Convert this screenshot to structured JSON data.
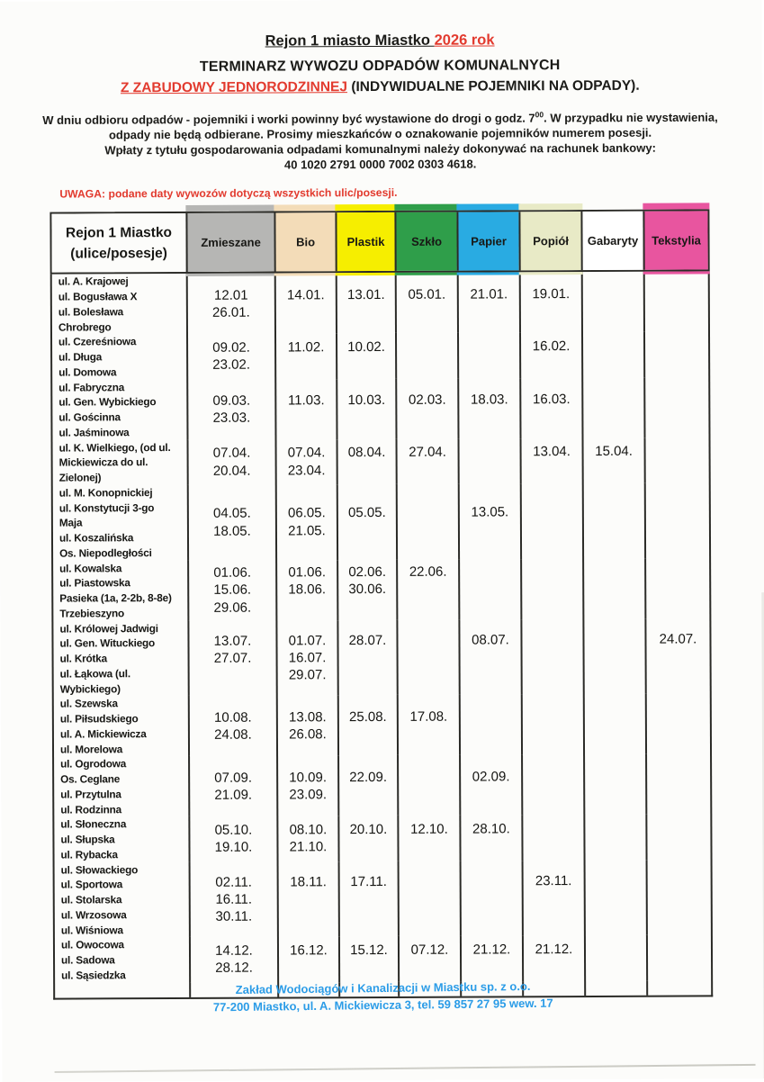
{
  "colors": {
    "red": "#e23a2e",
    "blue": "#2b9ce7",
    "table_border": "#2b2b27",
    "col_zmieszane": "#b6b6b4",
    "col_bio": "#f3dcb8",
    "col_plastik": "#f6ee00",
    "col_szklo": "#2f9e4a",
    "col_papier": "#29abe2",
    "col_popiol": "#e8eac6",
    "col_gabaryty": "#ffffff",
    "col_tekstylia": "#e8559f"
  },
  "page": {
    "title": {
      "black": "Rejon 1 miasto Miastko ",
      "red": "2026 rok"
    },
    "subtitle1": "TERMINARZ WYWOZU ODPADÓW KOMUNALNYCH",
    "subtitle2": {
      "red": "Z ZABUDOWY JEDNORODZINNEJ",
      "rest": " (INDYWIDUALNE POJEMNIKI NA ODPADY)."
    },
    "notice": {
      "l1a": "W dniu odbioru odpadów  - pojemniki i worki powinny być wystawione do drogi o godz. 7",
      "sup": "00",
      "l1b": ". W przypadku nie wystawienia,",
      "l2": "odpady nie będą odbierane. Prosimy mieszkańców o oznakowanie pojemników numerem posesji.",
      "l3": "Wpłaty z tytułu gospodarowania odpadami komunalnymi należy dokonywać na rachunek bankowy:",
      "l4": "40 1020 2791 0000 7002 0303 4618."
    },
    "uwaga": "UWAGA: podane daty wywozów dotyczą wszystkich ulic/posesji.",
    "footer": {
      "line1": "Zakład Wodociągów i Kanalizacji w Miastku sp. z o.o.",
      "line2": "77-200 Miastko, ul. A. Mickiewicza 3, tel. 59 857 27 95 wew. 17"
    }
  },
  "table": {
    "header": {
      "region_line1": "Rejon 1 Miastko",
      "region_line2": "(ulice/posesje)"
    },
    "columns": [
      {
        "key": "zmieszane",
        "label": "Zmieszane",
        "bg": "#b6b6b4",
        "bleed": true
      },
      {
        "key": "bio",
        "label": "Bio",
        "bg": "#f3dcb8",
        "bleed": true
      },
      {
        "key": "plastik",
        "label": "Plastik",
        "bg": "#f6ee00",
        "bleed": true
      },
      {
        "key": "szklo",
        "label": "Szkło",
        "bg": "#2f9e4a",
        "bleed": true
      },
      {
        "key": "papier",
        "label": "Papier",
        "bg": "#29abe2",
        "bleed": true
      },
      {
        "key": "popiol",
        "label": "Popiół",
        "bg": "#e8eac6",
        "bleed": true
      },
      {
        "key": "gabaryty",
        "label": "Gabaryty",
        "bg": "#ffffff",
        "bleed": false
      },
      {
        "key": "tekstylia",
        "label": "Tekstylia",
        "bg": "#e8559f",
        "bleed": true
      }
    ],
    "groups": [
      {
        "streets": [
          "ul. A. Krajowej",
          "ul. Bogusława X",
          "ul. Bolesława",
          "Chrobrego"
        ],
        "dates": {
          "zmieszane": [
            "12.01",
            "26.01."
          ],
          "bio": [
            "14.01."
          ],
          "plastik": [
            "13.01."
          ],
          "szklo": [
            "05.01."
          ],
          "papier": [
            "21.01."
          ],
          "popiol": [
            "19.01."
          ]
        }
      },
      {
        "streets": [
          "ul. Czereśniowa",
          "ul. Długa",
          "ul. Domowa"
        ],
        "dates": {
          "zmieszane": [
            "09.02.",
            "23.02."
          ],
          "bio": [
            "11.02."
          ],
          "plastik": [
            "10.02."
          ],
          "popiol": [
            "16.02."
          ]
        }
      },
      {
        "streets": [
          "ul. Fabryczna",
          "ul. Gen. Wybickiego",
          "ul. Gościnna",
          "ul. Jaśminowa"
        ],
        "dates": {
          "zmieszane": [
            "09.03.",
            "23.03."
          ],
          "bio": [
            "11.03."
          ],
          "plastik": [
            "10.03."
          ],
          "szklo": [
            "02.03."
          ],
          "papier": [
            "18.03."
          ],
          "popiol": [
            "16.03."
          ]
        }
      },
      {
        "streets": [
          "ul. K. Wielkiego, (od ul.",
          "Mickiewicza do ul.",
          "Zielonej)"
        ],
        "dates": {
          "zmieszane": [
            "07.04.",
            "20.04."
          ],
          "bio": [
            "07.04.",
            "23.04."
          ],
          "plastik": [
            "08.04."
          ],
          "szklo": [
            "27.04."
          ],
          "popiol": [
            "13.04."
          ],
          "gabaryty": [
            "15.04."
          ]
        }
      },
      {
        "streets": [
          "ul. M. Konopnickiej",
          "ul. Konstytucji 3-go",
          "Maja",
          "ul. Koszalińska",
          "Os. Niepodległości"
        ],
        "dates": {
          "zmieszane": [
            "04.05.",
            "18.05."
          ],
          "bio": [
            "06.05.",
            "21.05."
          ],
          "plastik": [
            "05.05."
          ],
          "papier": [
            "13.05."
          ]
        }
      },
      {
        "streets": [
          "ul. Kowalska",
          "ul. Piastowska",
          "Pasieka (1a, 2-2b, 8-8e)",
          "Trzebieszyno"
        ],
        "dates": {
          "zmieszane": [
            "01.06.",
            "15.06.",
            "29.06."
          ],
          "bio": [
            "01.06.",
            "18.06."
          ],
          "plastik": [
            "02.06.",
            "30.06."
          ],
          "szklo": [
            "22.06."
          ]
        }
      },
      {
        "streets": [
          "ul. Królowej Jadwigi",
          "ul. Gen. Wituckiego",
          "ul. Krótka",
          "ul. Łąkowa (ul.",
          "Wybickiego)"
        ],
        "dates": {
          "zmieszane": [
            "13.07.",
            "27.07."
          ],
          "bio": [
            "01.07.",
            "16.07.",
            "29.07."
          ],
          "plastik": [
            "28.07."
          ],
          "papier": [
            "08.07."
          ],
          "tekstylia": [
            "24.07."
          ]
        }
      },
      {
        "streets": [
          "ul. Szewska",
          "ul. Piłsudskiego",
          "ul. A. Mickiewicza",
          "ul. Morelowa"
        ],
        "dates": {
          "zmieszane": [
            "10.08.",
            "24.08."
          ],
          "bio": [
            "13.08.",
            "26.08."
          ],
          "plastik": [
            "25.08."
          ],
          "szklo": [
            "17.08."
          ]
        }
      },
      {
        "streets": [
          "ul. Ogrodowa",
          "Os. Ceglane",
          "ul. Przytulna",
          "ul. Rodzinna"
        ],
        "dates": {
          "zmieszane": [
            "07.09.",
            "21.09."
          ],
          "bio": [
            "10.09.",
            "23.09."
          ],
          "plastik": [
            "22.09."
          ],
          "papier": [
            "02.09."
          ]
        }
      },
      {
        "streets": [
          "ul. Słoneczna",
          "ul. Słupska",
          "ul. Rybacka"
        ],
        "dates": {
          "zmieszane": [
            "05.10.",
            "19.10."
          ],
          "bio": [
            "08.10.",
            "21.10."
          ],
          "plastik": [
            "20.10."
          ],
          "szklo": [
            "12.10."
          ],
          "papier": [
            "28.10."
          ]
        }
      },
      {
        "streets": [
          "ul. Słowackiego",
          "ul. Sportowa",
          "ul. Stolarska",
          "ul. Wrzosowa",
          "ul. Wiśniowa"
        ],
        "dates": {
          "zmieszane": [
            "02.11.",
            "16.11.",
            "30.11."
          ],
          "bio": [
            "18.11."
          ],
          "plastik": [
            "17.11."
          ],
          "popiol": [
            "23.11."
          ]
        }
      },
      {
        "streets": [
          "ul. Owocowa",
          "ul. Sadowa",
          "ul. Sąsiedzka"
        ],
        "dates": {
          "zmieszane": [
            "14.12.",
            "28.12."
          ],
          "bio": [
            "16.12."
          ],
          "plastik": [
            "15.12."
          ],
          "szklo": [
            "07.12."
          ],
          "papier": [
            "21.12."
          ],
          "popiol": [
            "21.12."
          ]
        }
      }
    ]
  }
}
